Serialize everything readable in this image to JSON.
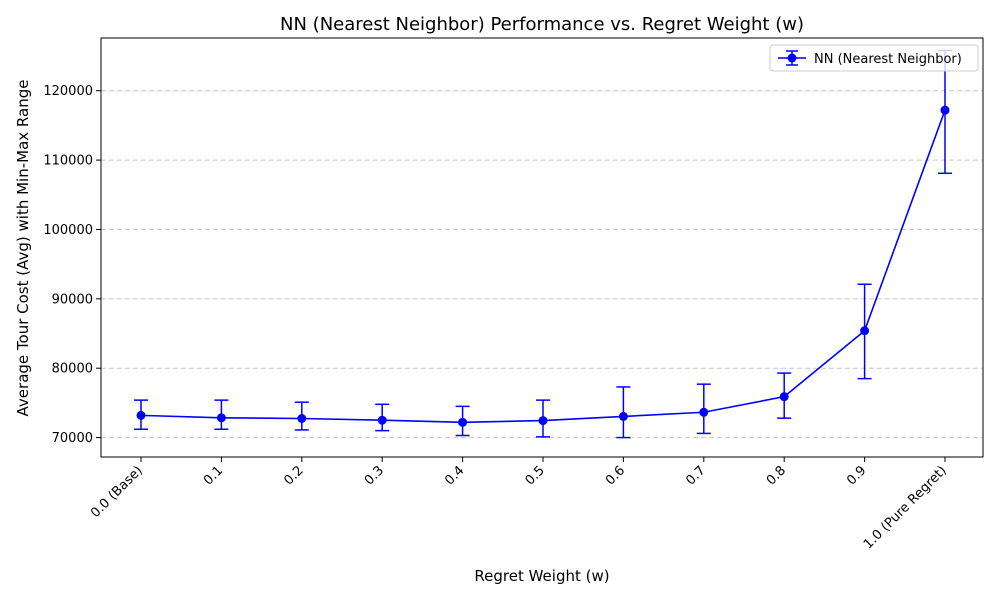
{
  "chart_data": {
    "type": "line",
    "title": "NN (Nearest Neighbor) Performance vs. Regret Weight (w)",
    "xlabel": "Regret Weight (w)",
    "ylabel": "Average Tour Cost (Avg) with Min-Max Range",
    "categories": [
      "0.0 (Base)",
      "0.1",
      "0.2",
      "0.3",
      "0.4",
      "0.5",
      "0.6",
      "0.7",
      "0.8",
      "0.9",
      "1.0 (Pure Regret)"
    ],
    "ylim": [
      67200,
      127600
    ],
    "yticks": [
      70000,
      80000,
      90000,
      100000,
      110000,
      120000
    ],
    "grid": "y-dashed",
    "legend_position": "top-right",
    "series": [
      {
        "name": "NN (Nearest Neighbor)",
        "color": "#0000ff",
        "marker": "circle",
        "values": [
          73200,
          72850,
          72750,
          72500,
          72200,
          72450,
          73050,
          73650,
          75900,
          85400,
          117200
        ],
        "min": [
          71200,
          71200,
          71100,
          71000,
          70300,
          70100,
          70000,
          70600,
          72800,
          78500,
          108100
        ],
        "max": [
          75400,
          75400,
          75100,
          74800,
          74500,
          75400,
          77300,
          77700,
          79300,
          92100,
          125800
        ]
      }
    ]
  }
}
